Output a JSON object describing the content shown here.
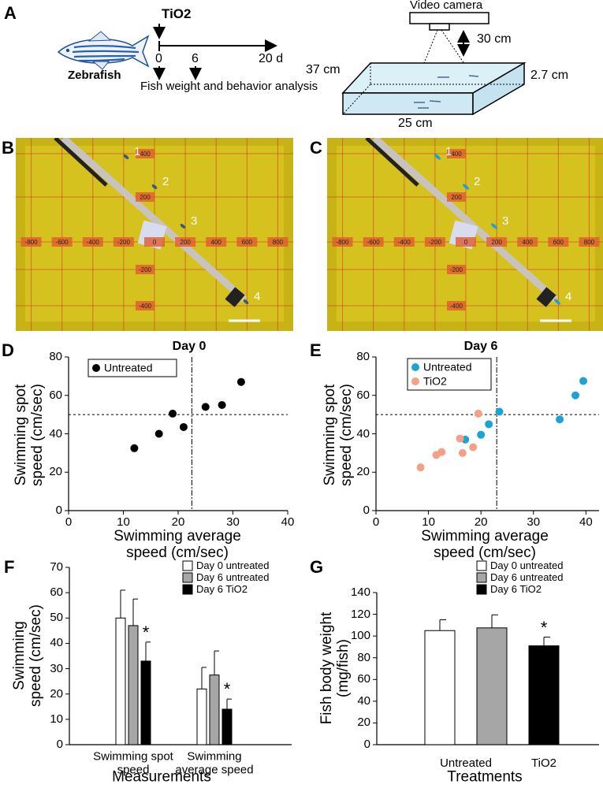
{
  "panel_labels": [
    "A",
    "B",
    "C",
    "D",
    "E",
    "F",
    "G"
  ],
  "diagram": {
    "fish_label": "Zebrafish",
    "treatment": "TiO2",
    "timeline": [
      "0",
      "6",
      "20 d"
    ],
    "outcome": "Fish weight and behavior analysis",
    "camera": "Video camera",
    "height": "30 cm",
    "length": "37 cm",
    "depth": "2.7 cm",
    "width": "25 cm"
  },
  "photos": [
    {
      "grid_x_labels": [
        "-800",
        "-600",
        "-400",
        "-200",
        "0",
        "200",
        "400",
        "600",
        "800"
      ],
      "grid_y_labels": [
        "400",
        "200",
        "-200",
        "-400"
      ],
      "fish_labels": [
        "1",
        "2",
        "3",
        "4"
      ]
    },
    {
      "grid_x_labels": [
        "-800",
        "-600",
        "-400",
        "-200",
        "0",
        "200",
        "400",
        "600",
        "800"
      ],
      "grid_y_labels": [
        "400",
        "200",
        "-200",
        "-400"
      ],
      "fish_labels": [
        "1",
        "2",
        "3",
        "4"
      ]
    }
  ],
  "chart_data": [
    {
      "type": "scatter",
      "title": "Day 0",
      "x_label": "Swimming average speed (cm/sec)",
      "y_label": "Swimming spot speed (cm/sec)",
      "xlim": [
        0,
        40
      ],
      "xticks": [
        0,
        10,
        20,
        30,
        40
      ],
      "ylim": [
        0,
        80
      ],
      "yticks": [
        0,
        20,
        40,
        60,
        80
      ],
      "vline": 22.5,
      "hline": 50,
      "legend": "upper left",
      "series": [
        {
          "name": "Untreated",
          "color": "#000000",
          "x": [
            12,
            16.5,
            19,
            21,
            25,
            28,
            31.5
          ],
          "values": [
            32.5,
            40,
            50.5,
            43.5,
            54,
            55,
            67
          ]
        }
      ]
    },
    {
      "type": "scatter",
      "title": "Day 6",
      "x_label": "Swimming average speed (cm/sec)",
      "y_label": "Swimming spot speed (cm/sec)",
      "xlim": [
        0,
        42.5
      ],
      "xticks": [
        0,
        10,
        20,
        30,
        40
      ],
      "ylim": [
        0,
        80
      ],
      "yticks": [
        0,
        20,
        40,
        60,
        80
      ],
      "vline": 23,
      "hline": 50,
      "legend": "upper left",
      "series": [
        {
          "name": "Untreated",
          "color": "#1ba3d6",
          "x": [
            17,
            20,
            21.5,
            23.5,
            35,
            38,
            39.5
          ],
          "values": [
            37,
            39.5,
            45,
            51.5,
            47.5,
            60,
            67.5
          ]
        },
        {
          "name": "TiO2",
          "color": "#f4a088",
          "x": [
            8.5,
            11.5,
            12.5,
            16,
            16.5,
            18.5,
            19.5
          ],
          "values": [
            22.5,
            29,
            30.5,
            37.5,
            30,
            33,
            50.5
          ]
        }
      ]
    },
    {
      "type": "bar",
      "x_label": "Measurements",
      "y_label": "Swimming speed (cm/sec)",
      "categories": [
        "Swimming spot speed",
        "Swimming average speed"
      ],
      "ylim": [
        0,
        70
      ],
      "yticks": [
        0,
        10,
        20,
        30,
        40,
        50,
        60,
        70
      ],
      "legend": "upper right",
      "series": [
        {
          "name": "Day 0 untreated",
          "color": "#ffffff",
          "values": [
            50,
            22
          ],
          "errors": [
            11,
            8.5
          ]
        },
        {
          "name": "Day 6 untreated",
          "color": "#a6a6a6",
          "values": [
            47,
            27.5
          ],
          "errors": [
            10.5,
            9.5
          ]
        },
        {
          "name": "Day 6 TiO2",
          "color": "#000000",
          "values": [
            33,
            14
          ],
          "errors": [
            7.5,
            4
          ],
          "significance": [
            "*",
            "*"
          ]
        }
      ]
    },
    {
      "type": "bar",
      "x_label": "Treatments",
      "y_label": "Fish body weight (mg/fish)",
      "categories": [
        "Untreated",
        "TiO2"
      ],
      "ylim": [
        0,
        140
      ],
      "yticks": [
        0,
        20,
        40,
        60,
        80,
        100,
        120,
        140
      ],
      "legend": "upper right",
      "series": [
        {
          "name": "Day 0 untreated",
          "color": "#ffffff",
          "values": [
            105,
            null
          ],
          "errors": [
            10,
            null
          ]
        },
        {
          "name": "Day 6 untreated",
          "color": "#a6a6a6",
          "values": [
            107.5,
            null
          ],
          "errors": [
            12,
            null
          ]
        },
        {
          "name": "Day 6 TiO2",
          "color": "#000000",
          "values": [
            null,
            91
          ],
          "errors": [
            null,
            8
          ],
          "significance": [
            null,
            "*"
          ]
        }
      ]
    }
  ]
}
